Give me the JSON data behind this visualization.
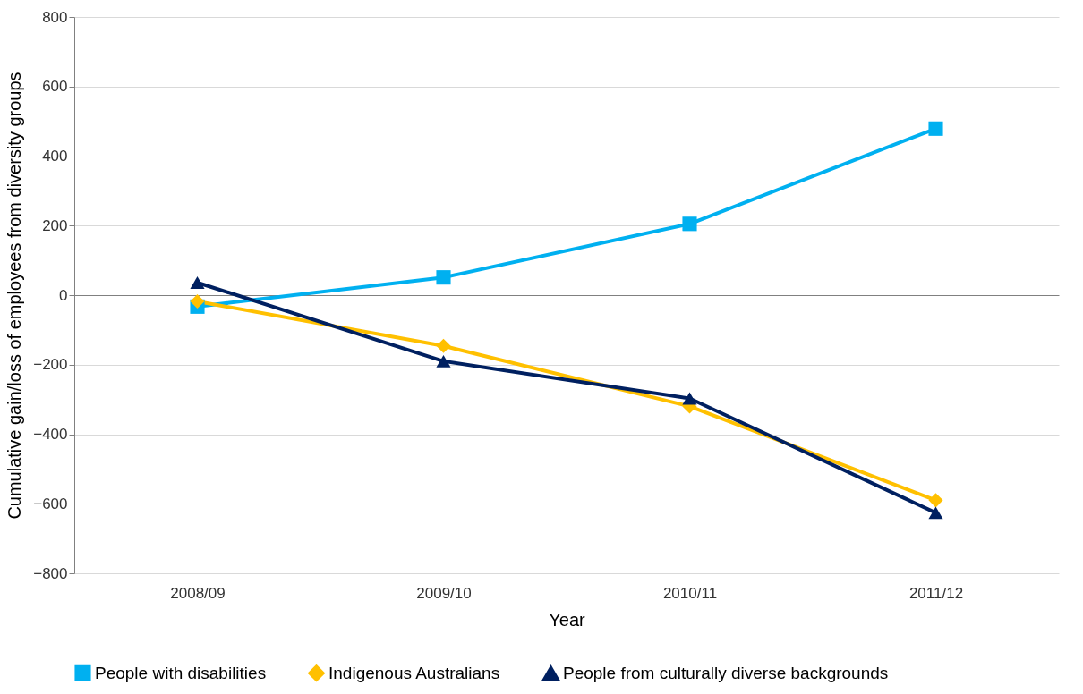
{
  "chart_data": {
    "type": "line",
    "xlabel": "Year",
    "ylabel": "Cumulative gain/loss of employees from diversity groups",
    "categories": [
      "2008/09",
      "2009/10",
      "2010/11",
      "2011/12"
    ],
    "series": [
      {
        "name": "People with disabilities",
        "color": "#00b0f0",
        "marker": "square",
        "values": [
          -33,
          51,
          205,
          479
        ]
      },
      {
        "name": "Indigenous Australians",
        "color": "#ffc000",
        "marker": "diamond",
        "values": [
          -18,
          -146,
          -320,
          -590
        ]
      },
      {
        "name": "People from culturally diverse backgrounds",
        "color": "#002060",
        "marker": "triangle",
        "values": [
          36,
          -190,
          -297,
          -626
        ]
      }
    ],
    "ylim": [
      -800,
      800
    ],
    "yticks": [
      -800,
      -600,
      -400,
      -200,
      0,
      200,
      400,
      600,
      800
    ],
    "grid": "y",
    "legend": "bottom",
    "line_style": "solid"
  }
}
